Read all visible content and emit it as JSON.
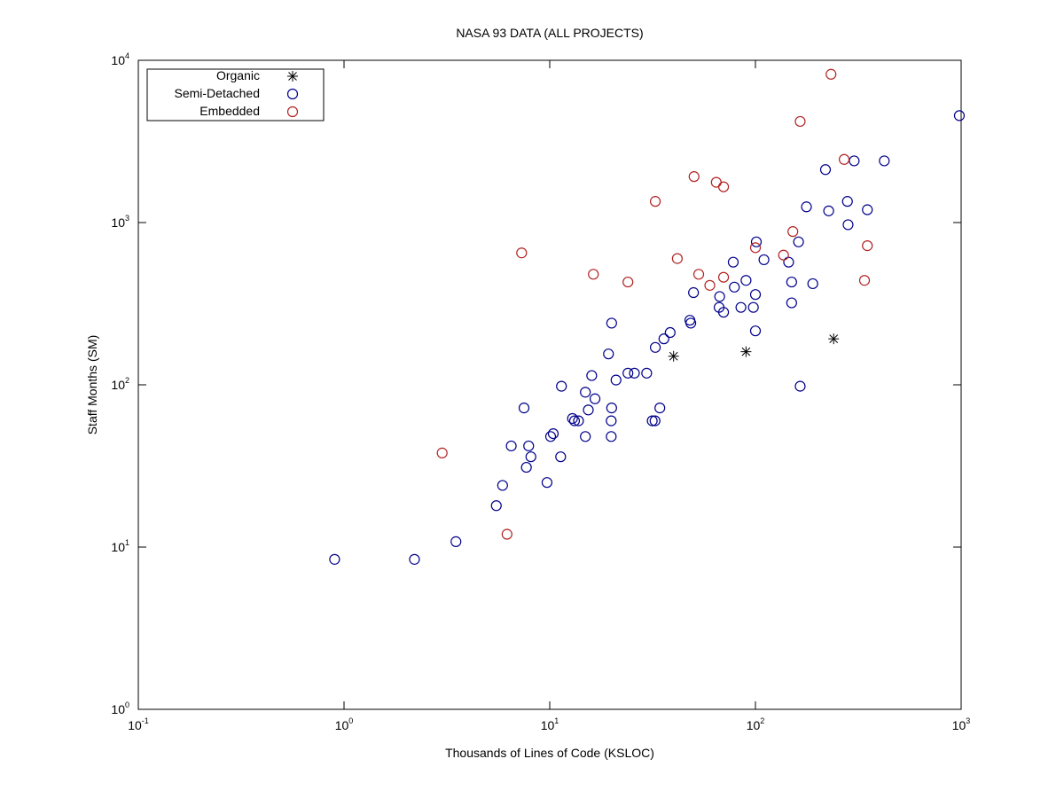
{
  "chart_data": {
    "type": "scatter",
    "title": "NASA 93 DATA (ALL PROJECTS)",
    "xlabel": "Thousands of Lines of Code (KSLOC)",
    "ylabel": "Staff Months (SM)",
    "xscale": "log",
    "yscale": "log",
    "xlim": [
      0.1,
      1000
    ],
    "ylim": [
      1,
      10000
    ],
    "x_ticks": [
      {
        "base": "10",
        "exp": "-1",
        "value": 0.1
      },
      {
        "base": "10",
        "exp": "0",
        "value": 1
      },
      {
        "base": "10",
        "exp": "1",
        "value": 10
      },
      {
        "base": "10",
        "exp": "2",
        "value": 100
      },
      {
        "base": "10",
        "exp": "3",
        "value": 1000
      }
    ],
    "y_ticks": [
      {
        "base": "10",
        "exp": "0",
        "value": 1
      },
      {
        "base": "10",
        "exp": "1",
        "value": 10
      },
      {
        "base": "10",
        "exp": "2",
        "value": 100
      },
      {
        "base": "10",
        "exp": "3",
        "value": 1000
      },
      {
        "base": "10",
        "exp": "4",
        "value": 10000
      }
    ],
    "grid": false,
    "legend_position": "top-left",
    "series": [
      {
        "name": "Organic",
        "marker": "asterisk",
        "color": "#000000",
        "points": [
          [
            40,
            150
          ],
          [
            90,
            160
          ],
          [
            240,
            192
          ]
        ]
      },
      {
        "name": "Semi-Detached",
        "marker": "circle",
        "color": "#00008b",
        "points": [
          [
            0.9,
            8.4
          ],
          [
            2.2,
            8.4
          ],
          [
            3.5,
            10.8
          ],
          [
            5.5,
            18
          ],
          [
            5.9,
            24
          ],
          [
            6.5,
            42
          ],
          [
            7.5,
            72
          ],
          [
            7.7,
            31
          ],
          [
            7.9,
            42
          ],
          [
            8.1,
            36
          ],
          [
            9.7,
            25
          ],
          [
            10.1,
            48
          ],
          [
            10.4,
            50
          ],
          [
            11.3,
            36
          ],
          [
            11.4,
            98
          ],
          [
            12.9,
            62
          ],
          [
            13.2,
            60
          ],
          [
            13.8,
            60
          ],
          [
            14.9,
            90
          ],
          [
            14.9,
            48
          ],
          [
            15.4,
            70
          ],
          [
            16,
            114
          ],
          [
            16.6,
            82
          ],
          [
            19.3,
            155
          ],
          [
            19.9,
            48
          ],
          [
            19.9,
            60
          ],
          [
            20,
            72
          ],
          [
            20,
            240
          ],
          [
            21,
            107
          ],
          [
            24,
            118
          ],
          [
            25.8,
            118
          ],
          [
            29.6,
            118
          ],
          [
            31.5,
            60
          ],
          [
            32.5,
            60
          ],
          [
            32.6,
            170
          ],
          [
            34.3,
            72
          ],
          [
            35.9,
            192
          ],
          [
            38.5,
            210
          ],
          [
            48,
            250
          ],
          [
            48.5,
            240
          ],
          [
            50,
            370
          ],
          [
            66.6,
            300
          ],
          [
            67,
            350
          ],
          [
            70,
            280
          ],
          [
            78,
            570
          ],
          [
            79,
            400
          ],
          [
            85,
            300
          ],
          [
            90,
            440
          ],
          [
            97.7,
            300
          ],
          [
            100,
            215
          ],
          [
            100,
            360
          ],
          [
            101,
            760
          ],
          [
            110,
            590
          ],
          [
            145,
            570
          ],
          [
            150,
            430
          ],
          [
            150,
            320
          ],
          [
            162,
            760
          ],
          [
            165,
            98
          ],
          [
            177,
            1250
          ],
          [
            190,
            420
          ],
          [
            219,
            2120
          ],
          [
            227,
            1180
          ],
          [
            280,
            1350
          ],
          [
            282,
            970
          ],
          [
            302,
            2400
          ],
          [
            350,
            1200
          ],
          [
            423,
            2400
          ],
          [
            980,
            4560
          ]
        ]
      },
      {
        "name": "Embedded",
        "marker": "circle",
        "color": "#b22222",
        "points": [
          [
            3,
            38
          ],
          [
            6.2,
            12
          ],
          [
            7.3,
            650
          ],
          [
            16.3,
            480
          ],
          [
            24,
            430
          ],
          [
            32.6,
            1350
          ],
          [
            41.7,
            600
          ],
          [
            50.3,
            1920
          ],
          [
            53,
            480
          ],
          [
            60,
            410
          ],
          [
            64.5,
            1770
          ],
          [
            70,
            460
          ],
          [
            70,
            1660
          ],
          [
            100,
            700
          ],
          [
            137,
            630
          ],
          [
            152,
            880
          ],
          [
            165,
            4200
          ],
          [
            233,
            8200
          ],
          [
            270,
            2450
          ],
          [
            339,
            440
          ],
          [
            350,
            720
          ]
        ]
      }
    ]
  }
}
